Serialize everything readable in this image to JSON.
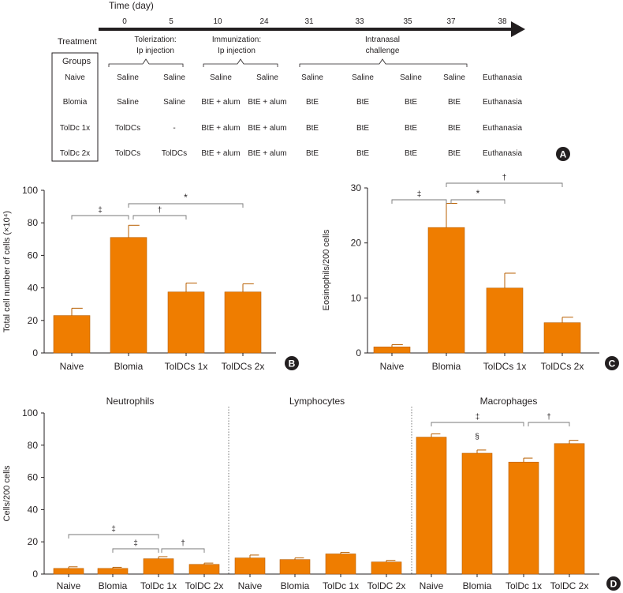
{
  "colors": {
    "bar": "#ef7d00",
    "bar_edge": "#b85f00",
    "axis": "#231f20",
    "panel_label_bg": "#231f20"
  },
  "panel_a": {
    "label": "A",
    "time_title": "Time (day)",
    "days": [
      "0",
      "5",
      "10",
      "24",
      "31",
      "33",
      "35",
      "37",
      "38"
    ],
    "treatment_label": "Treatment",
    "phases": [
      {
        "line1": "Tolerization:",
        "line2": "Ip injection"
      },
      {
        "line1": "Immunization:",
        "line2": "Ip injection"
      },
      {
        "line1": "Intranasal",
        "line2": "challenge"
      }
    ],
    "groups_header": "Groups",
    "rows": [
      {
        "group": "Naive",
        "cells": [
          "Saline",
          "Saline",
          "Saline",
          "Saline",
          "Saline",
          "Saline",
          "Saline",
          "Saline",
          "Euthanasia"
        ]
      },
      {
        "group": "Blomia",
        "cells": [
          "Saline",
          "Saline",
          "BtE + alum",
          "BtE + alum",
          "BtE",
          "BtE",
          "BtE",
          "BtE",
          "Euthanasia"
        ]
      },
      {
        "group": "TolDc 1x",
        "cells": [
          "TolDCs",
          "-",
          "BtE + alum",
          "BtE + alum",
          "BtE",
          "BtE",
          "BtE",
          "BtE",
          "Euthanasia"
        ]
      },
      {
        "group": "TolDc 2x",
        "cells": [
          "TolDCs",
          "TolDCs",
          "BtE + alum",
          "BtE + alum",
          "BtE",
          "BtE",
          "BtE",
          "BtE",
          "Euthanasia"
        ]
      }
    ]
  },
  "chart_data": [
    {
      "panel": "B",
      "type": "bar",
      "title": "",
      "xlabel": "",
      "ylabel": "Total cell number of cells (×10⁴)",
      "ylim": [
        0,
        100
      ],
      "yticks": [
        "0",
        "20",
        "40",
        "60",
        "80",
        "100"
      ],
      "categories": [
        "Naive",
        "Blomia",
        "TolDCs 1x",
        "TolDCs 2x"
      ],
      "values": [
        23,
        71,
        37.5,
        37.5
      ],
      "errors": [
        4.5,
        7.5,
        5.5,
        5
      ],
      "significance": [
        {
          "symbol": "‡",
          "from": "Naive",
          "to": "Blomia"
        },
        {
          "symbol": "†",
          "from": "Blomia",
          "to": "TolDCs 1x"
        },
        {
          "symbol": "*",
          "from": "Blomia",
          "to": "TolDCs 2x"
        }
      ]
    },
    {
      "panel": "C",
      "type": "bar",
      "title": "",
      "xlabel": "",
      "ylabel": "Eosinophils/200 cells",
      "ylim": [
        0,
        30
      ],
      "yticks": [
        "0",
        "10",
        "20",
        "30"
      ],
      "categories": [
        "Naive",
        "Blomia",
        "TolDCs 1x",
        "TolDCs 2x"
      ],
      "values": [
        1.1,
        22.8,
        11.8,
        5.5
      ],
      "errors": [
        0.4,
        4.4,
        2.7,
        1.0
      ],
      "significance": [
        {
          "symbol": "‡",
          "from": "Naive",
          "to": "Blomia"
        },
        {
          "symbol": "*",
          "from": "Blomia",
          "to": "TolDCs 1x"
        },
        {
          "symbol": "†",
          "from": "Blomia",
          "to": "TolDCs 2x"
        }
      ]
    },
    {
      "panel": "D",
      "type": "bar",
      "title": "",
      "xlabel": "",
      "ylabel": "Cells/200 cells",
      "ylim": [
        0,
        100
      ],
      "yticks": [
        "0",
        "20",
        "40",
        "60",
        "80",
        "100"
      ],
      "groups": [
        {
          "name": "Neutrophils",
          "categories": [
            "Naive",
            "Blomia",
            "TolDc 1x",
            "TolDC 2x"
          ],
          "values": [
            3.5,
            3.5,
            9.5,
            6
          ],
          "errors": [
            1,
            0.7,
            1.3,
            0.8
          ],
          "significance": [
            {
              "symbol": "‡",
              "from": "Naive",
              "to": "TolDc 1x"
            },
            {
              "symbol": "‡",
              "from": "Blomia",
              "to": "TolDc 1x"
            },
            {
              "symbol": "†",
              "from": "TolDc 1x",
              "to": "TolDC 2x"
            }
          ]
        },
        {
          "name": "Lymphocytes",
          "categories": [
            "Naive",
            "Blomia",
            "TolDc 1x",
            "TolDC 2x"
          ],
          "values": [
            10,
            9,
            12.5,
            7.5
          ],
          "errors": [
            1.8,
            1,
            1,
            1
          ],
          "significance": []
        },
        {
          "name": "Macrophages",
          "categories": [
            "Naive",
            "Blomia",
            "TolDc 1x",
            "TolDC 2x"
          ],
          "values": [
            85,
            75,
            69.5,
            81
          ],
          "errors": [
            2,
            2,
            2.5,
            2
          ],
          "significance": [
            {
              "symbol": "‡",
              "from": "Naive",
              "to": "TolDc 1x"
            },
            {
              "symbol": "§",
              "from": "Blomia",
              "to": "Blomia"
            },
            {
              "symbol": "†",
              "from": "TolDc 1x",
              "to": "TolDC 2x"
            }
          ]
        }
      ]
    }
  ]
}
